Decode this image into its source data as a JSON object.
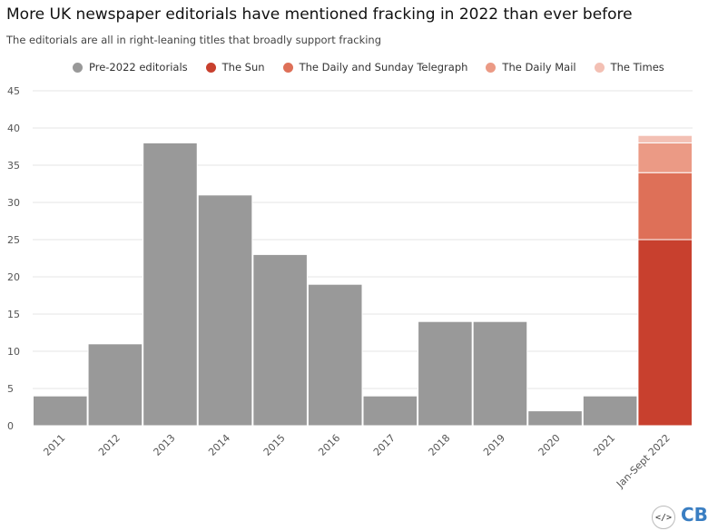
{
  "title": "More UK newspaper editorials have mentioned fracking in 2022 than ever before",
  "subtitle": "The editorials are all in right-leaning titles that broadly support fracking",
  "footer": {
    "embed_icon": "</>",
    "logo": "CB"
  },
  "colors": {
    "pre2022": "#999999",
    "sun": "#c8402e",
    "telegraph": "#de7058",
    "mail": "#eb9a85",
    "times": "#f3c0b4"
  },
  "chart_data": {
    "type": "bar",
    "stacked": true,
    "title": "More UK newspaper editorials have mentioned fracking in 2022 than ever before",
    "subtitle": "The editorials are all in right-leaning titles that broadly support fracking",
    "categories": [
      "2011",
      "2012",
      "2013",
      "2014",
      "2015",
      "2016",
      "2017",
      "2018",
      "2019",
      "2020",
      "2021",
      "Jan-Sept 2022"
    ],
    "series": [
      {
        "name": "Pre-2022 editorials",
        "color": "#999999",
        "values": [
          4,
          11,
          38,
          31,
          23,
          19,
          4,
          14,
          14,
          2,
          4,
          0
        ]
      },
      {
        "name": "The Sun",
        "color": "#c8402e",
        "values": [
          0,
          0,
          0,
          0,
          0,
          0,
          0,
          0,
          0,
          0,
          0,
          25
        ]
      },
      {
        "name": "The Daily and Sunday Telegraph",
        "color": "#de7058",
        "values": [
          0,
          0,
          0,
          0,
          0,
          0,
          0,
          0,
          0,
          0,
          0,
          9
        ]
      },
      {
        "name": "The Daily Mail",
        "color": "#eb9a85",
        "values": [
          0,
          0,
          0,
          0,
          0,
          0,
          0,
          0,
          0,
          0,
          0,
          4
        ]
      },
      {
        "name": "The Times",
        "color": "#f3c0b4",
        "values": [
          0,
          0,
          0,
          0,
          0,
          0,
          0,
          0,
          0,
          0,
          0,
          1
        ]
      }
    ],
    "yticks": [
      0,
      5,
      10,
      15,
      20,
      25,
      30,
      35,
      40,
      45
    ],
    "ylim": [
      0,
      45
    ],
    "xlabel": "",
    "ylabel": "",
    "grid": true,
    "legend_position": "top"
  }
}
